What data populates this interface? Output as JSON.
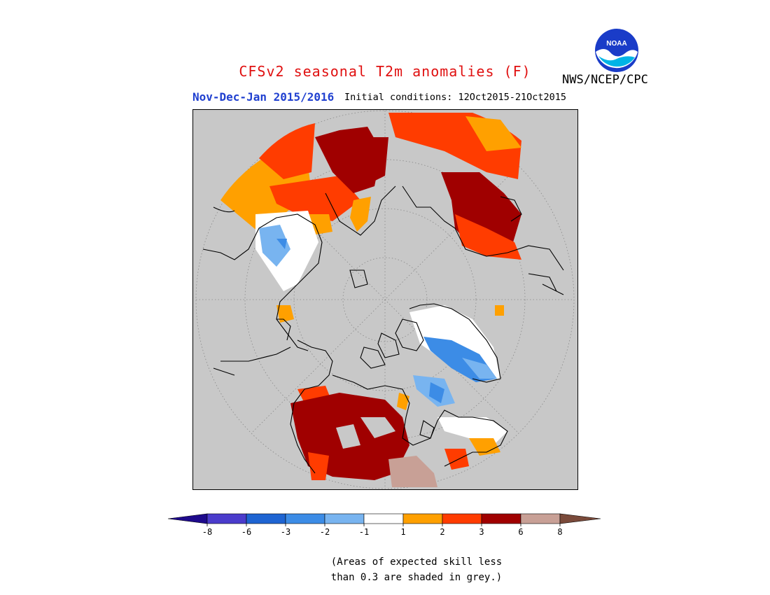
{
  "title": "CFSv2 seasonal T2m anomalies (F)",
  "period": "Nov-Dec-Jan 2015/2016",
  "initial_conditions": "Initial conditions: 12Oct2015-21Oct2015",
  "agency": "NWS/NCEP/CPC",
  "logo_text": "NOAA",
  "colors": {
    "title": "#e01010",
    "period": "#2040d0",
    "no_skill": "#c8c8c8",
    "coast": "#000000"
  },
  "legend": {
    "labels": [
      "-8",
      "-6",
      "-3",
      "-2",
      "-1",
      "1",
      "2",
      "3",
      "6",
      "8"
    ],
    "colors": [
      "#1e0a8c",
      "#4b3ccc",
      "#1e64d2",
      "#3c8ce6",
      "#78b4f0",
      "#ffffff",
      "#ffa000",
      "#ff3c00",
      "#a00000",
      "#c8a096",
      "#7a4a3a"
    ]
  },
  "note": [
    "(Areas of expected skill less",
    "than 0.3 are shaded in grey.)"
  ]
}
